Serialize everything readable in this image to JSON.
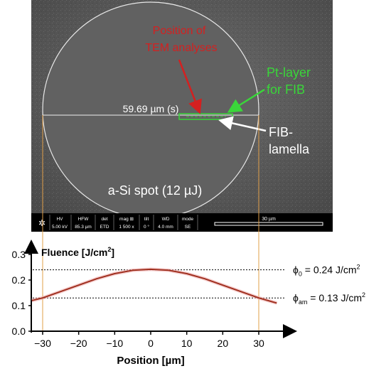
{
  "sem": {
    "annotations": {
      "tem_label_line1": "Position of",
      "tem_label_line2": "TEM analyses",
      "pt_label_line1": "Pt-layer",
      "pt_label_line2": "for FIB",
      "fib_label_line1": "FIB-",
      "fib_label_line2": "lamella",
      "diameter_label": "59.69 µm (s)",
      "spot_label": "a-Si spot (12 µJ)"
    },
    "databar": {
      "hv_label": "HV",
      "hv_value": "5.00 kV",
      "hfw_label": "HFW",
      "hfw_value": "85.3 µm",
      "det_label": "det",
      "det_value": "ETD",
      "mag_label": "mag ⊞",
      "mag_value": "1 500 x",
      "tilt_label": "tilt",
      "tilt_value": "0 °",
      "wd_label": "WD",
      "wd_value": "4.0 mm",
      "mode_label": "mode",
      "mode_value": "SE",
      "scalebar_label": "30 µm"
    },
    "colors": {
      "tem": "#d42020",
      "pt": "#3ad63a",
      "circle": "#e8e8e8",
      "guide": "#e2a04a"
    }
  },
  "chart_data": {
    "type": "line",
    "ylabel": "Fluence [J/cm²]",
    "xlabel": "Position [µm]",
    "xlim": [
      -33,
      37
    ],
    "ylim": [
      0,
      0.3
    ],
    "x_ticks": [
      "−30",
      "−20",
      "−10",
      "0",
      "10",
      "20",
      "30"
    ],
    "x_tick_values": [
      -30,
      -20,
      -10,
      0,
      10,
      20,
      30
    ],
    "y_ticks": [
      "0.0",
      "0.1",
      "0.2",
      "0.3"
    ],
    "y_tick_values": [
      0,
      0.1,
      0.2,
      0.3
    ],
    "series": [
      {
        "color": "#a03020",
        "x": [
          -33,
          -30,
          -25,
          -20,
          -15,
          -10,
          -5,
          0,
          5,
          10,
          15,
          20,
          25,
          30,
          35
        ],
        "y": [
          0.12,
          0.13,
          0.155,
          0.18,
          0.205,
          0.225,
          0.238,
          0.242,
          0.238,
          0.225,
          0.205,
          0.18,
          0.155,
          0.13,
          0.11
        ]
      }
    ],
    "reference_lines": [
      {
        "y": 0.24,
        "label_symbol": "ϕ",
        "label_sub": "0",
        "label_text": " = 0.24 J/cm",
        "label_sup": "2"
      },
      {
        "y": 0.13,
        "label_symbol": "ϕ",
        "label_sub": "am",
        "label_text": " = 0.13 J/cm",
        "label_sup": "2"
      }
    ],
    "vertical_guides": [
      -30,
      30
    ]
  }
}
